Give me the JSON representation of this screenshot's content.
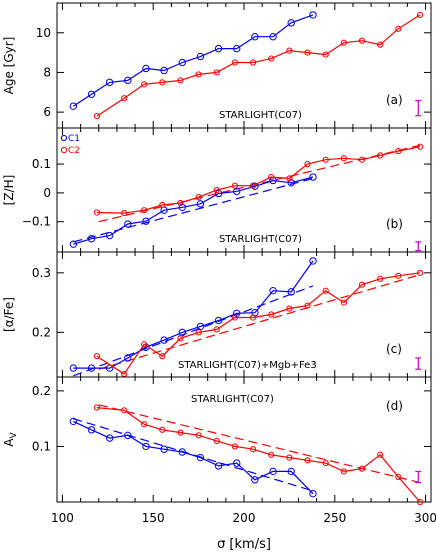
{
  "x_axis": {
    "label": "σ [km/s]",
    "lim": [
      97,
      303
    ],
    "ticks": [
      100,
      150,
      200,
      250,
      300
    ]
  },
  "legend": [
    {
      "label": "C1",
      "color": "#0000ff"
    },
    {
      "label": "C2",
      "color": "#ff0000"
    }
  ],
  "chart_data": [
    {
      "type": "line",
      "panel_tag": "(a)",
      "note": "STARLIGHT(C07)",
      "ylabel": "Age [Gyr]",
      "ylim": [
        5.2,
        11.5
      ],
      "yticks": [
        6,
        8,
        10
      ],
      "errorbar": {
        "x": 296,
        "low": 5.82,
        "high": 6.58
      },
      "series": [
        {
          "name": "C1",
          "color": "#0000ff",
          "x": [
            106,
            116,
            126,
            136,
            146,
            156,
            166,
            176,
            186,
            196,
            206,
            216,
            226,
            238
          ],
          "y": [
            6.3,
            6.9,
            7.5,
            7.6,
            8.2,
            8.1,
            8.5,
            8.8,
            9.2,
            9.2,
            9.8,
            9.8,
            10.5,
            10.9
          ]
        },
        {
          "name": "C2",
          "color": "#ff0000",
          "x": [
            119,
            134,
            145,
            155,
            165,
            175,
            185,
            195,
            205,
            215,
            225,
            235,
            245,
            255,
            265,
            275,
            285,
            297
          ],
          "y": [
            5.8,
            6.7,
            7.4,
            7.5,
            7.6,
            7.9,
            8.0,
            8.5,
            8.5,
            8.7,
            9.1,
            9.0,
            8.9,
            9.5,
            9.6,
            9.4,
            10.2,
            10.9
          ]
        }
      ]
    },
    {
      "type": "line",
      "panel_tag": "(b)",
      "note": "STARLIGHT(C07)",
      "ylabel": "[Z/H]",
      "ylim": [
        -0.205,
        0.225
      ],
      "yticks": [
        -0.1,
        0,
        0.1
      ],
      "errorbar": {
        "x": 296,
        "low": -0.2,
        "high": -0.17
      },
      "series": [
        {
          "name": "C1",
          "color": "#0000ff",
          "x": [
            106,
            116,
            126,
            136,
            146,
            156,
            166,
            176,
            186,
            196,
            206,
            216,
            226,
            238
          ],
          "y": [
            -0.178,
            -0.159,
            -0.148,
            -0.108,
            -0.098,
            -0.06,
            -0.05,
            -0.038,
            -0.002,
            0.005,
            0.023,
            0.043,
            0.035,
            0.055
          ],
          "fit": [
            [
              106,
              -0.17
            ],
            [
              238,
              0.05
            ]
          ]
        },
        {
          "name": "C2",
          "color": "#ff0000",
          "x": [
            119,
            134,
            145,
            155,
            165,
            175,
            185,
            195,
            205,
            215,
            225,
            235,
            245,
            255,
            265,
            275,
            285,
            297
          ],
          "y": [
            -0.068,
            -0.07,
            -0.06,
            -0.042,
            -0.035,
            -0.015,
            0.01,
            0.025,
            0.025,
            0.055,
            0.05,
            0.1,
            0.115,
            0.12,
            0.115,
            0.13,
            0.145,
            0.16
          ],
          "fit": [
            [
              120,
              -0.1
            ],
            [
              297,
              0.165
            ]
          ]
        }
      ]
    },
    {
      "type": "line",
      "panel_tag": "(c)",
      "note": "STARLIGHT(C07)+Mgb+Fe3",
      "ylabel": "[α/Fe]",
      "ylim": [
        0.125,
        0.335
      ],
      "yticks": [
        0.2,
        0.3
      ],
      "errorbar": {
        "x": 296,
        "low": 0.138,
        "high": 0.157
      },
      "series": [
        {
          "name": "C1",
          "color": "#0000ff",
          "x": [
            106,
            116,
            126,
            136,
            146,
            156,
            166,
            176,
            186,
            196,
            206,
            216,
            226,
            238
          ],
          "y": [
            0.14,
            0.14,
            0.14,
            0.157,
            0.175,
            0.187,
            0.2,
            0.21,
            0.22,
            0.232,
            0.233,
            0.27,
            0.268,
            0.32
          ],
          "fit": [
            [
              106,
              0.127
            ],
            [
              238,
              0.278
            ]
          ]
        },
        {
          "name": "C2",
          "color": "#ff0000",
          "x": [
            119,
            134,
            145,
            155,
            165,
            175,
            185,
            195,
            205,
            215,
            225,
            235,
            245,
            255,
            265,
            275,
            285,
            297
          ],
          "y": [
            0.16,
            0.13,
            0.18,
            0.16,
            0.19,
            0.2,
            0.205,
            0.225,
            0.225,
            0.23,
            0.24,
            0.245,
            0.27,
            0.25,
            0.28,
            0.29,
            0.295,
            0.3
          ],
          "fit": [
            [
              120,
              0.138
            ],
            [
              297,
              0.297
            ]
          ]
        }
      ]
    },
    {
      "type": "line",
      "panel_tag": "(d)",
      "note": "STARLIGHT(C07)",
      "ylabel": "A_V",
      "ylim": [
        0.0,
        0.225
      ],
      "yticks": [
        0.1,
        0.2
      ],
      "errorbar": {
        "x": 296,
        "low": 0.035,
        "high": 0.055
      },
      "series": [
        {
          "name": "C1",
          "color": "#0000ff",
          "x": [
            106,
            116,
            126,
            136,
            146,
            156,
            166,
            176,
            186,
            196,
            206,
            216,
            226,
            238
          ],
          "y": [
            0.145,
            0.13,
            0.115,
            0.12,
            0.1,
            0.095,
            0.09,
            0.08,
            0.065,
            0.07,
            0.04,
            0.055,
            0.055,
            0.015
          ],
          "fit": [
            [
              106,
              0.15
            ],
            [
              238,
              0.02
            ]
          ]
        },
        {
          "name": "C2",
          "color": "#ff0000",
          "x": [
            119,
            134,
            145,
            155,
            165,
            175,
            185,
            195,
            205,
            215,
            225,
            235,
            245,
            255,
            265,
            275,
            285,
            297
          ],
          "y": [
            0.17,
            0.165,
            0.14,
            0.13,
            0.125,
            0.12,
            0.11,
            0.1,
            0.095,
            0.085,
            0.08,
            0.075,
            0.07,
            0.055,
            0.06,
            0.085,
            0.045,
            0.0
          ],
          "fit": [
            [
              120,
              0.175
            ],
            [
              297,
              0.035
            ]
          ]
        }
      ]
    }
  ]
}
